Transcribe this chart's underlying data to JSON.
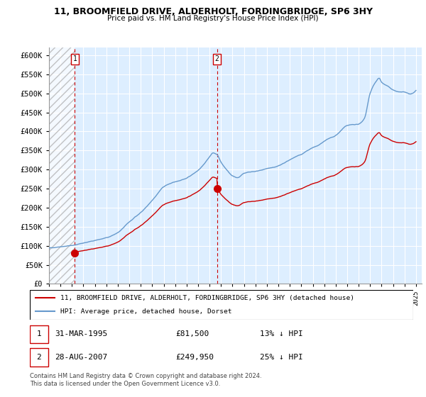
{
  "title_line1": "11, BROOMFIELD DRIVE, ALDERHOLT, FORDINGBRIDGE, SP6 3HY",
  "title_line2": "Price paid vs. HM Land Registry's House Price Index (HPI)",
  "xlim": [
    1993.0,
    2025.5
  ],
  "ylim": [
    0,
    620000
  ],
  "yticks": [
    0,
    50000,
    100000,
    150000,
    200000,
    250000,
    300000,
    350000,
    400000,
    450000,
    500000,
    550000,
    600000
  ],
  "ytick_labels": [
    "£0",
    "£50K",
    "£100K",
    "£150K",
    "£200K",
    "£250K",
    "£300K",
    "£350K",
    "£400K",
    "£450K",
    "£500K",
    "£550K",
    "£600K"
  ],
  "xtick_years": [
    1993,
    1994,
    1995,
    1996,
    1997,
    1998,
    1999,
    2000,
    2001,
    2002,
    2003,
    2004,
    2005,
    2006,
    2007,
    2008,
    2009,
    2010,
    2011,
    2012,
    2013,
    2014,
    2015,
    2016,
    2017,
    2018,
    2019,
    2020,
    2021,
    2022,
    2023,
    2024,
    2025
  ],
  "hpi_color": "#6699cc",
  "hpi_fill_color": "#ddeeff",
  "price_color": "#cc0000",
  "dot_color": "#cc0000",
  "sale1_x": 1995.25,
  "sale1_y": 81500,
  "sale2_x": 2007.65,
  "sale2_y": 249950,
  "vline_color": "#cc0000",
  "legend_line1": "11, BROOMFIELD DRIVE, ALDERHOLT, FORDINGBRIDGE, SP6 3HY (detached house)",
  "legend_line2": "HPI: Average price, detached house, Dorset",
  "footnote": "Contains HM Land Registry data © Crown copyright and database right 2024.\nThis data is licensed under the Open Government Licence v3.0.",
  "bg_color": "#ddeeff",
  "hatch_bg_color": "#ffffff",
  "grid_color": "#ffffff"
}
